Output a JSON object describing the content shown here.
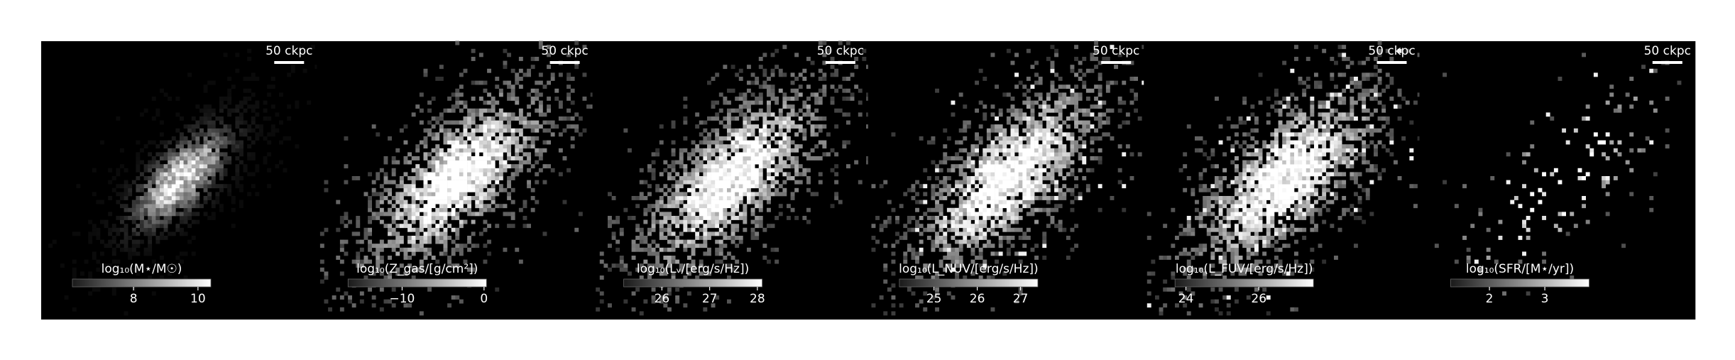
{
  "panels": [
    {
      "scale_label": "50 ckpc",
      "colorbar": {
        "label": "log₁₀(M⋆/M☉)",
        "lim": [
          6.1,
          10.4
        ],
        "ticks": [
          8,
          10
        ]
      }
    },
    {
      "scale_label": "50 ckpc",
      "colorbar": {
        "label": "log₁₀(Z_gas/[g/cm²])",
        "lim": [
          -16.6,
          0.3
        ],
        "ticks": [
          {
            "value": -10,
            "label": "−10"
          },
          0
        ]
      }
    },
    {
      "scale_label": "50 ckpc",
      "colorbar": {
        "label": "log₁₀(Lᵥ/[erg/s/Hz])",
        "lim": [
          25.2,
          28.1
        ],
        "ticks": [
          26,
          27,
          28
        ]
      }
    },
    {
      "scale_label": "50 ckpc",
      "colorbar": {
        "label": "log₁₀(L_NUV/[erg/s/Hz])",
        "lim": [
          24.2,
          27.4
        ],
        "ticks": [
          25,
          26,
          27
        ]
      }
    },
    {
      "scale_label": "50 ckpc",
      "colorbar": {
        "label": "log₁₀(L_FUV/[erg/s/Hz])",
        "lim": [
          23.7,
          27.5
        ],
        "ticks": [
          24,
          26
        ]
      }
    },
    {
      "scale_label": "50 ckpc",
      "colorbar": {
        "label": "log₁₀(SFR/[M⋆/yr])",
        "lim": [
          1.3,
          3.8
        ],
        "ticks": [
          2,
          3
        ]
      }
    }
  ]
}
